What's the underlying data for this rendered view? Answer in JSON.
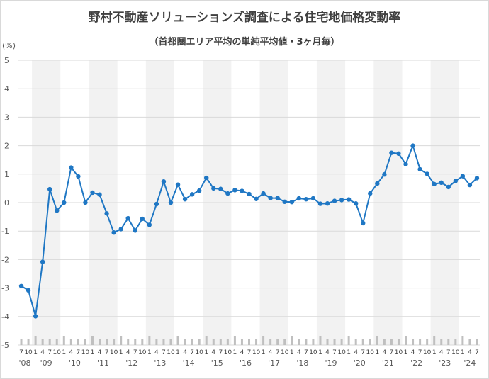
{
  "chart_data": {
    "type": "line",
    "title": "野村不動産ソリューションズ調査による住宅地価格変動率",
    "subtitle": "（首都圏エリア平均の単純平均値・3ヶ月毎）",
    "ylabel": "(%)",
    "ylim": [
      -5,
      5
    ],
    "yticks": [
      "5",
      "4",
      "3",
      "2",
      "1",
      "0",
      "-1",
      "-2",
      "-3",
      "-4",
      "-5"
    ],
    "grid": true,
    "year_labels": [
      "'08",
      "'09",
      "'10",
      "'11",
      "'12",
      "'13",
      "'14",
      "'15",
      "'16",
      "'17",
      "'18",
      "'19",
      "'20",
      "'21",
      "'22",
      "'23",
      "'24"
    ],
    "x": [
      "2008-07",
      "2008-10",
      "2009-01",
      "2009-04",
      "2009-07",
      "2009-10",
      "2010-01",
      "2010-04",
      "2010-07",
      "2010-10",
      "2011-01",
      "2011-04",
      "2011-07",
      "2011-10",
      "2012-01",
      "2012-04",
      "2012-07",
      "2012-10",
      "2013-01",
      "2013-04",
      "2013-07",
      "2013-10",
      "2014-01",
      "2014-04",
      "2014-07",
      "2014-10",
      "2015-01",
      "2015-04",
      "2015-07",
      "2015-10",
      "2016-01",
      "2016-04",
      "2016-07",
      "2016-10",
      "2017-01",
      "2017-04",
      "2017-07",
      "2017-10",
      "2018-01",
      "2018-04",
      "2018-07",
      "2018-10",
      "2019-01",
      "2019-04",
      "2019-07",
      "2019-10",
      "2020-01",
      "2020-04",
      "2020-07",
      "2020-10",
      "2021-01",
      "2021-04",
      "2021-07",
      "2021-10",
      "2022-01",
      "2022-04",
      "2022-07",
      "2022-10",
      "2023-01",
      "2023-04",
      "2023-07",
      "2023-10",
      "2024-01",
      "2024-04",
      "2024-07"
    ],
    "series": [
      {
        "color": "#1f77c4",
        "values": [
          -2.93,
          -3.08,
          -3.99,
          -2.08,
          0.47,
          -0.28,
          0.0,
          1.23,
          0.92,
          0.0,
          0.35,
          0.28,
          -0.38,
          -1.05,
          -0.93,
          -0.55,
          -0.98,
          -0.57,
          -0.78,
          -0.05,
          0.74,
          0.0,
          0.63,
          0.12,
          0.29,
          0.42,
          0.87,
          0.5,
          0.48,
          0.32,
          0.44,
          0.41,
          0.3,
          0.13,
          0.32,
          0.16,
          0.16,
          0.03,
          0.02,
          0.15,
          0.12,
          0.15,
          -0.04,
          -0.03,
          0.06,
          0.09,
          0.11,
          -0.03,
          -0.72,
          0.32,
          0.67,
          0.99,
          1.75,
          1.72,
          1.35,
          2.0,
          1.17,
          1.01,
          0.65,
          0.7,
          0.55,
          0.76,
          0.93,
          0.62,
          0.86
        ]
      }
    ]
  }
}
